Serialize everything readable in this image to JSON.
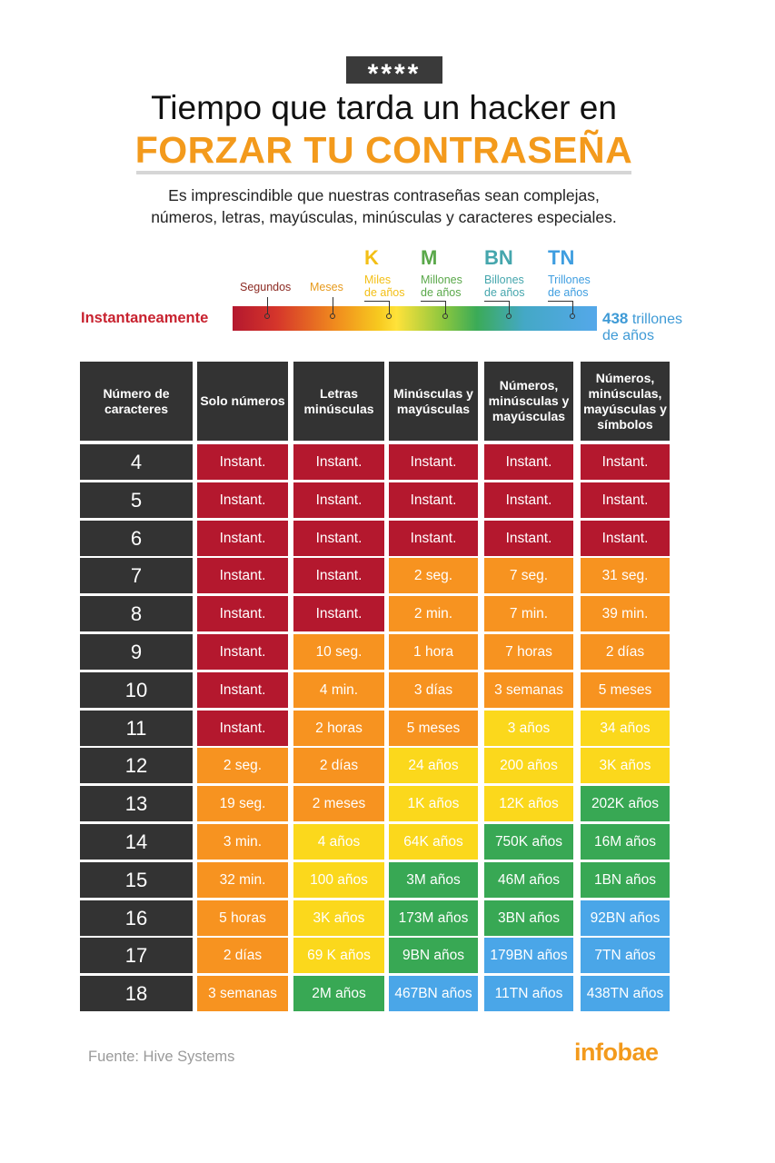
{
  "header": {
    "badge": "****",
    "title_line1": "Tiempo que tarda un hacker en",
    "title_line2": "FORZAR TU CONTRASEÑA",
    "subtitle_line1": "Es imprescindible que nuestras  contraseñas sean complejas,",
    "subtitle_line2": "números, letras, mayúsculas, minúsculas y caracteres especiales."
  },
  "legend": {
    "left_label": "Instantaneamente",
    "right_value": "438",
    "right_unit": "trillones",
    "right_line2": "de años",
    "items": [
      {
        "letter": "",
        "label1": "Segundos",
        "label2": "",
        "color": "#8c2a22"
      },
      {
        "letter": "",
        "label1": "Meses",
        "label2": "",
        "color": "#e79a1c"
      },
      {
        "letter": "K",
        "label1": "Miles",
        "label2": "de años",
        "color": "#f3bf16"
      },
      {
        "letter": "M",
        "label1": "Millones",
        "label2": "de años",
        "color": "#5aa84a"
      },
      {
        "letter": "BN",
        "label1": "Billones",
        "label2": "de años",
        "color": "#45a6ad"
      },
      {
        "letter": "TN",
        "label1": "Trillones",
        "label2": "de años",
        "color": "#3f9ee0"
      }
    ]
  },
  "colors": {
    "red": "#b4182e",
    "orange": "#f79320",
    "yellow": "#fbd81c",
    "green": "#38a854",
    "blue": "#4aa6e8",
    "dark": "#333333",
    "accent": "#f39a1c"
  },
  "chart_data": {
    "type": "table",
    "columns": [
      "Número de caracteres",
      "Solo números",
      "Letras minúsculas",
      "Minúsculas y mayúsculas",
      "Números, minúsculas y mayúsculas",
      "Números, minúsculas, mayúsculas y símbolos"
    ],
    "rows": [
      {
        "chars": "4",
        "cells": [
          [
            "Instant.",
            "red"
          ],
          [
            "Instant.",
            "red"
          ],
          [
            "Instant.",
            "red"
          ],
          [
            "Instant.",
            "red"
          ],
          [
            "Instant.",
            "red"
          ]
        ]
      },
      {
        "chars": "5",
        "cells": [
          [
            "Instant.",
            "red"
          ],
          [
            "Instant.",
            "red"
          ],
          [
            "Instant.",
            "red"
          ],
          [
            "Instant.",
            "red"
          ],
          [
            "Instant.",
            "red"
          ]
        ]
      },
      {
        "chars": "6",
        "cells": [
          [
            "Instant.",
            "red"
          ],
          [
            "Instant.",
            "red"
          ],
          [
            "Instant.",
            "red"
          ],
          [
            "Instant.",
            "red"
          ],
          [
            "Instant.",
            "red"
          ]
        ]
      },
      {
        "chars": "7",
        "cells": [
          [
            "Instant.",
            "red"
          ],
          [
            "Instant.",
            "red"
          ],
          [
            "2 seg.",
            "orange"
          ],
          [
            "7 seg.",
            "orange"
          ],
          [
            "31 seg.",
            "orange"
          ]
        ]
      },
      {
        "chars": "8",
        "cells": [
          [
            "Instant.",
            "red"
          ],
          [
            "Instant.",
            "red"
          ],
          [
            "2 min.",
            "orange"
          ],
          [
            "7 min.",
            "orange"
          ],
          [
            "39 min.",
            "orange"
          ]
        ]
      },
      {
        "chars": "9",
        "cells": [
          [
            "Instant.",
            "red"
          ],
          [
            "10 seg.",
            "orange"
          ],
          [
            "1 hora",
            "orange"
          ],
          [
            "7 horas",
            "orange"
          ],
          [
            "2 días",
            "orange"
          ]
        ]
      },
      {
        "chars": "10",
        "cells": [
          [
            "Instant.",
            "red"
          ],
          [
            "4 min.",
            "orange"
          ],
          [
            "3 días",
            "orange"
          ],
          [
            "3 semanas",
            "orange"
          ],
          [
            "5 meses",
            "orange"
          ]
        ]
      },
      {
        "chars": "11",
        "cells": [
          [
            "Instant.",
            "red"
          ],
          [
            "2 horas",
            "orange"
          ],
          [
            "5 meses",
            "orange"
          ],
          [
            "3 años",
            "yellow"
          ],
          [
            "34 años",
            "yellow"
          ]
        ]
      },
      {
        "chars": "12",
        "cells": [
          [
            "2 seg.",
            "orange"
          ],
          [
            "2 días",
            "orange"
          ],
          [
            "24 años",
            "yellow"
          ],
          [
            "200 años",
            "yellow"
          ],
          [
            "3K años",
            "yellow"
          ]
        ]
      },
      {
        "chars": "13",
        "cells": [
          [
            "19 seg.",
            "orange"
          ],
          [
            "2 meses",
            "orange"
          ],
          [
            "1K años",
            "yellow"
          ],
          [
            "12K años",
            "yellow"
          ],
          [
            "202K años",
            "green"
          ]
        ]
      },
      {
        "chars": "14",
        "cells": [
          [
            "3 min.",
            "orange"
          ],
          [
            "4 años",
            "yellow"
          ],
          [
            "64K años",
            "yellow"
          ],
          [
            "750K años",
            "green"
          ],
          [
            "16M años",
            "green"
          ]
        ]
      },
      {
        "chars": "15",
        "cells": [
          [
            "32 min.",
            "orange"
          ],
          [
            "100 años",
            "yellow"
          ],
          [
            "3M años",
            "green"
          ],
          [
            "46M años",
            "green"
          ],
          [
            "1BN años",
            "green"
          ]
        ]
      },
      {
        "chars": "16",
        "cells": [
          [
            "5 horas",
            "orange"
          ],
          [
            "3K años",
            "yellow"
          ],
          [
            "173M años",
            "green"
          ],
          [
            "3BN años",
            "green"
          ],
          [
            "92BN años",
            "blue"
          ]
        ]
      },
      {
        "chars": "17",
        "cells": [
          [
            "2 días",
            "orange"
          ],
          [
            "69 K años",
            "yellow"
          ],
          [
            "9BN años",
            "green"
          ],
          [
            "179BN años",
            "blue"
          ],
          [
            "7TN años",
            "blue"
          ]
        ]
      },
      {
        "chars": "18",
        "cells": [
          [
            "3 semanas",
            "orange"
          ],
          [
            "2M años",
            "green"
          ],
          [
            "467BN años",
            "blue"
          ],
          [
            "11TN años",
            "blue"
          ],
          [
            "438TN años",
            "blue"
          ]
        ]
      }
    ]
  },
  "footer": {
    "source": "Fuente: Hive Systems",
    "logo": "infobae"
  }
}
